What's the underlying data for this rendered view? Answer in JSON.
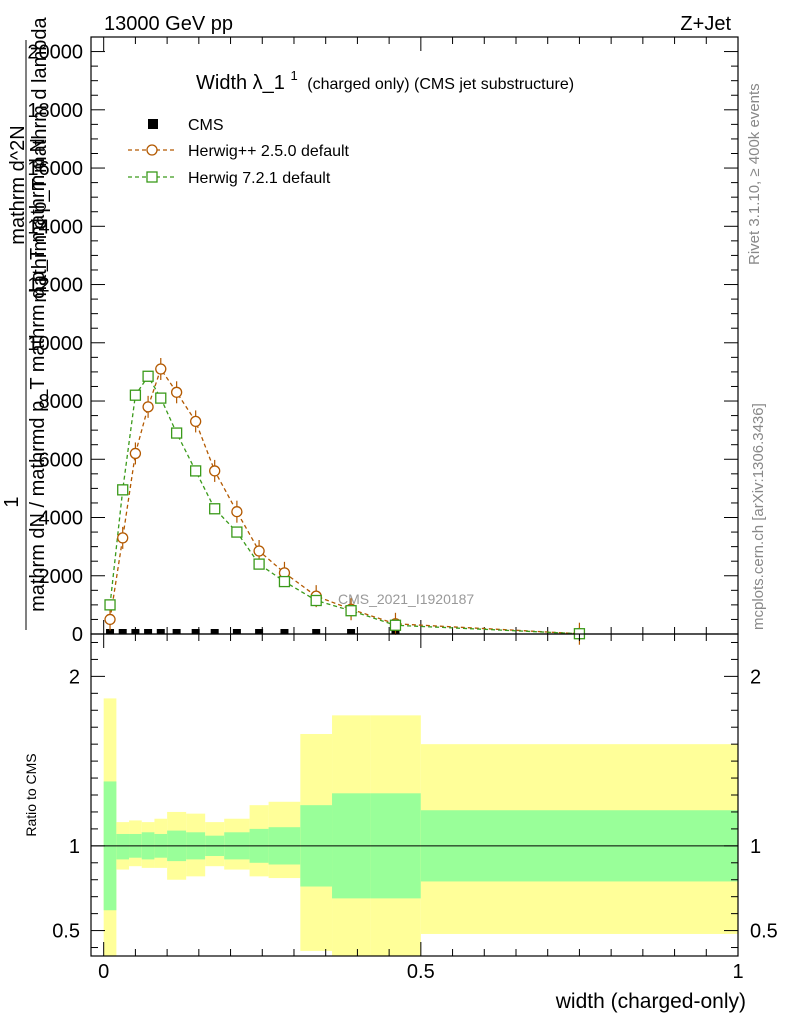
{
  "header": {
    "left": "13000 GeV pp",
    "right": "Z+Jet"
  },
  "side_labels": {
    "rivet": "Rivet 3.1.10, ≥ 400k events",
    "mcplots": "mcplots.cern.ch [arXiv:1306.3436]"
  },
  "chart_data": {
    "type": "line",
    "title_main": "Width λ_1",
    "title_sup": "1",
    "title_sub": "(charged only) (CMS jet substructure)",
    "watermark": "CMS_2021_I1920187",
    "xlabel": "width (charged-only)",
    "ylabel_top": {
      "numerator": "1",
      "denominator": "mathrm dN / mathrmd p_T mathrm d p_T mathrm d N"
    },
    "ylabel_stack": [
      "mathrm d^2N",
      "mathrm d p_T mathrm d lambda"
    ],
    "ylabel_ratio": "Ratio to CMS",
    "xlim": [
      -0.02,
      1.0
    ],
    "ylim_main": [
      0,
      20500
    ],
    "ylim_ratio": [
      0.35,
      2.25
    ],
    "x_ticks": [
      {
        "value": 0,
        "label": "0"
      },
      {
        "value": 0.5,
        "label": "0.5"
      },
      {
        "value": 1,
        "label": "1"
      }
    ],
    "y_ticks_main": [
      {
        "value": 0,
        "label": "0"
      },
      {
        "value": 2000,
        "label": "2000"
      },
      {
        "value": 4000,
        "label": "4000"
      },
      {
        "value": 6000,
        "label": "6000"
      },
      {
        "value": 8000,
        "label": "8000"
      },
      {
        "value": 10000,
        "label": "10000"
      },
      {
        "value": 12000,
        "label": "12000"
      },
      {
        "value": 14000,
        "label": "14000"
      },
      {
        "value": 16000,
        "label": "16000"
      },
      {
        "value": 18000,
        "label": "18000"
      },
      {
        "value": 20000,
        "label": "20000"
      }
    ],
    "y_ticks_ratio": [
      {
        "value": 0.5,
        "label": "0.5"
      },
      {
        "value": 1,
        "label": "1"
      },
      {
        "value": 2,
        "label": "2"
      }
    ],
    "legend": [
      {
        "name": "CMS",
        "marker": "square-filled",
        "color": "#000000"
      },
      {
        "name": "Herwig++ 2.5.0 default",
        "marker": "circle-open",
        "color": "#b35900"
      },
      {
        "name": "Herwig 7.2.1 default",
        "marker": "square-open",
        "color": "#3a9a1a"
      }
    ],
    "series": [
      {
        "name": "CMS",
        "color": "#000000",
        "x": [
          0.01,
          0.03,
          0.05,
          0.07,
          0.09,
          0.115,
          0.145,
          0.175,
          0.21,
          0.245,
          0.285,
          0.335,
          0.39,
          0.46,
          0.75
        ],
        "y": [
          0,
          0,
          0,
          0,
          0,
          0,
          0,
          0,
          0,
          0,
          0,
          0,
          0,
          0,
          0
        ]
      },
      {
        "name": "Herwig++ 2.5.0 default",
        "color": "#b35900",
        "x": [
          0.01,
          0.03,
          0.05,
          0.07,
          0.09,
          0.115,
          0.145,
          0.175,
          0.21,
          0.245,
          0.285,
          0.335,
          0.39,
          0.46,
          0.75
        ],
        "y": [
          500,
          3300,
          6200,
          7800,
          9100,
          8300,
          7300,
          5600,
          4200,
          2850,
          2100,
          1300,
          850,
          350,
          10
        ]
      },
      {
        "name": "Herwig 7.2.1 default",
        "color": "#3a9a1a",
        "x": [
          0.01,
          0.03,
          0.05,
          0.07,
          0.09,
          0.115,
          0.145,
          0.175,
          0.21,
          0.245,
          0.285,
          0.335,
          0.39,
          0.46,
          0.75
        ],
        "y": [
          1000,
          4950,
          8200,
          8850,
          8100,
          6900,
          5600,
          4300,
          3500,
          2400,
          1800,
          1150,
          800,
          300,
          10
        ]
      }
    ],
    "ratio_bands": {
      "bins": [
        0.0,
        0.02,
        0.04,
        0.06,
        0.08,
        0.1,
        0.13,
        0.16,
        0.19,
        0.23,
        0.26,
        0.31,
        0.36,
        0.42,
        0.5,
        1.0
      ],
      "inner_low": [
        0.62,
        0.92,
        0.93,
        0.92,
        0.93,
        0.91,
        0.92,
        0.94,
        0.92,
        0.9,
        0.89,
        0.76,
        0.69,
        0.69,
        0.79
      ],
      "inner_high": [
        1.38,
        1.07,
        1.07,
        1.08,
        1.07,
        1.09,
        1.08,
        1.06,
        1.08,
        1.1,
        1.11,
        1.24,
        1.31,
        1.31,
        1.21
      ],
      "outer_low": [
        0.35,
        0.86,
        0.88,
        0.87,
        0.87,
        0.8,
        0.82,
        0.88,
        0.86,
        0.82,
        0.81,
        0.38,
        0.35,
        0.35,
        0.48
      ],
      "outer_high": [
        1.87,
        1.14,
        1.15,
        1.14,
        1.16,
        1.2,
        1.19,
        1.14,
        1.16,
        1.24,
        1.26,
        1.66,
        1.77,
        1.77,
        1.6
      ]
    }
  },
  "colors": {
    "band_inner": "#99ff99",
    "band_outer": "#ffff99",
    "herwig_pp": "#b35900",
    "herwig7": "#3a9a1a",
    "watermark": "#999999",
    "side_text": "#888888"
  }
}
